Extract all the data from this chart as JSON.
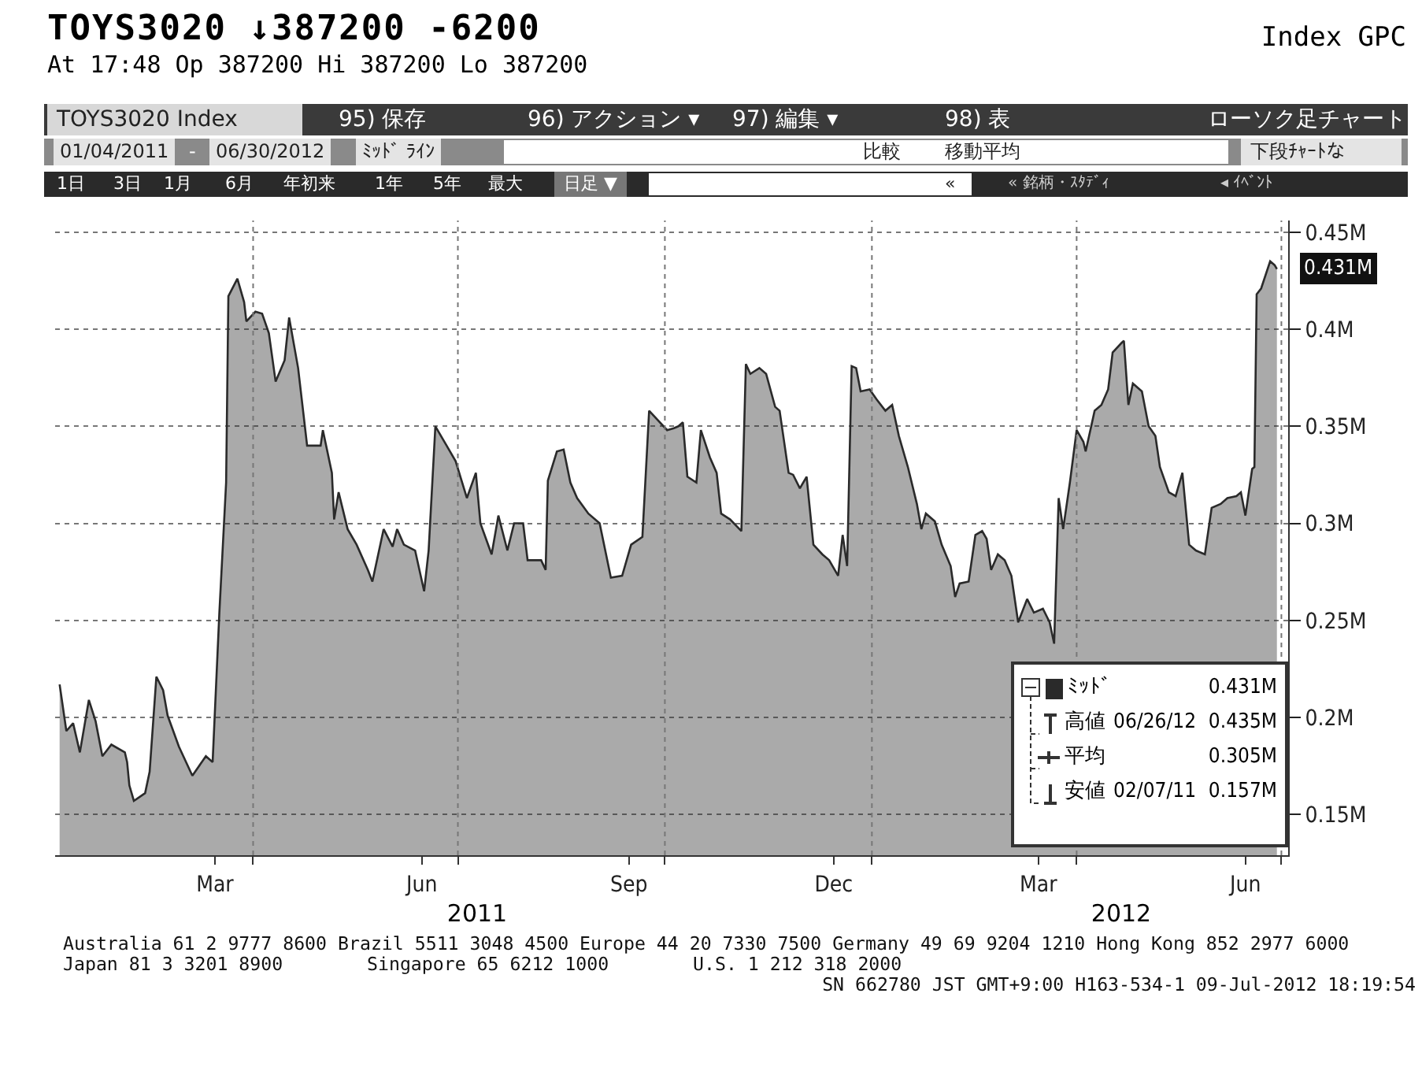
{
  "chart_data": {
    "type": "area",
    "title": "TOYS3020 ↓387200 -6200",
    "subtitle": "At 17:48 Op 387200 Hi 387200 Lo 387200",
    "x": [
      "2011-01-05",
      "2011-01-08",
      "2011-01-11",
      "2011-01-14",
      "2011-01-18",
      "2011-01-21",
      "2011-01-24",
      "2011-01-28",
      "2011-02-03",
      "2011-02-04",
      "2011-02-05",
      "2011-02-07",
      "2011-02-12",
      "2011-02-14",
      "2011-02-17",
      "2011-02-20",
      "2011-02-22",
      "2011-02-27",
      "2011-03-05",
      "2011-03-11",
      "2011-03-14",
      "2011-03-17",
      "2011-03-20",
      "2011-03-21",
      "2011-03-25",
      "2011-03-28",
      "2011-03-29",
      "2011-04-02",
      "2011-04-05",
      "2011-04-08",
      "2011-04-11",
      "2011-04-15",
      "2011-04-17",
      "2011-04-21",
      "2011-04-25",
      "2011-05-01",
      "2011-05-02",
      "2011-05-06",
      "2011-05-07",
      "2011-05-09",
      "2011-05-13",
      "2011-05-17",
      "2011-05-22",
      "2011-05-24",
      "2011-05-29",
      "2011-06-02",
      "2011-06-04",
      "2011-06-07",
      "2011-06-12",
      "2011-06-16",
      "2011-06-18",
      "2011-06-21",
      "2011-06-26",
      "2011-06-30",
      "2011-07-05",
      "2011-07-09",
      "2011-07-11",
      "2011-07-16",
      "2011-07-19",
      "2011-07-23",
      "2011-07-26",
      "2011-07-30",
      "2011-08-01",
      "2011-08-07",
      "2011-08-09",
      "2011-08-10",
      "2011-08-14",
      "2011-08-17",
      "2011-08-20",
      "2011-08-23",
      "2011-08-28",
      "2011-09-02",
      "2011-09-07",
      "2011-09-12",
      "2011-09-16",
      "2011-09-21",
      "2011-09-24",
      "2011-10-02",
      "2011-10-05",
      "2011-10-07",
      "2011-10-09",
      "2011-10-11",
      "2011-10-15",
      "2011-10-17",
      "2011-10-21",
      "2011-10-24",
      "2011-10-26",
      "2011-10-30",
      "2011-11-04",
      "2011-11-06",
      "2011-11-08",
      "2011-11-12",
      "2011-11-15",
      "2011-11-19",
      "2011-11-21",
      "2011-11-25",
      "2011-11-27",
      "2011-11-30",
      "2011-12-03",
      "2011-12-06",
      "2011-12-10",
      "2011-12-13",
      "2011-12-17",
      "2011-12-19",
      "2011-12-21",
      "2011-12-23",
      "2011-12-25",
      "2011-12-27",
      "2011-12-31",
      "2012-01-03",
      "2012-01-07",
      "2012-01-10",
      "2012-01-13",
      "2012-01-17",
      "2012-01-21",
      "2012-01-23",
      "2012-01-25",
      "2012-01-29",
      "2012-02-01",
      "2012-02-05",
      "2012-02-07",
      "2012-02-09",
      "2012-02-13",
      "2012-02-16",
      "2012-02-19",
      "2012-02-21",
      "2012-02-23",
      "2012-02-26",
      "2012-02-29",
      "2012-03-03",
      "2012-03-06",
      "2012-03-10",
      "2012-03-13",
      "2012-03-17",
      "2012-03-20",
      "2012-03-22",
      "2012-03-24",
      "2012-03-26",
      "2012-03-29",
      "2012-04-01",
      "2012-04-04",
      "2012-04-05",
      "2012-04-09",
      "2012-04-12",
      "2012-04-15",
      "2012-04-17",
      "2012-04-21",
      "2012-04-22",
      "2012-04-24",
      "2012-04-26",
      "2012-04-30",
      "2012-05-03",
      "2012-05-06",
      "2012-05-08",
      "2012-05-12",
      "2012-05-15",
      "2012-05-18",
      "2012-05-21",
      "2012-05-24",
      "2012-05-28",
      "2012-05-31",
      "2012-06-04",
      "2012-06-07",
      "2012-06-11",
      "2012-06-13",
      "2012-06-15",
      "2012-06-18",
      "2012-06-19",
      "2012-06-20",
      "2012-06-22",
      "2012-06-26",
      "2012-06-28",
      "2012-06-29"
    ],
    "series": [
      {
        "name": "ﾐｯﾄﾞ",
        "color": "#2a2a2a",
        "values": [
          0.217,
          0.193,
          0.197,
          0.182,
          0.209,
          0.198,
          0.18,
          0.186,
          0.182,
          0.177,
          0.165,
          0.157,
          0.161,
          0.172,
          0.221,
          0.214,
          0.201,
          0.185,
          0.17,
          0.18,
          0.177,
          0.254,
          0.321,
          0.417,
          0.426,
          0.414,
          0.404,
          0.409,
          0.408,
          0.398,
          0.373,
          0.384,
          0.406,
          0.38,
          0.34,
          0.34,
          0.348,
          0.326,
          0.302,
          0.316,
          0.297,
          0.289,
          0.276,
          0.27,
          0.297,
          0.288,
          0.297,
          0.289,
          0.286,
          0.265,
          0.286,
          0.35,
          0.34,
          0.332,
          0.313,
          0.326,
          0.3,
          0.284,
          0.304,
          0.286,
          0.3,
          0.3,
          0.281,
          0.281,
          0.276,
          0.322,
          0.337,
          0.338,
          0.321,
          0.313,
          0.305,
          0.3,
          0.272,
          0.273,
          0.289,
          0.293,
          0.358,
          0.348,
          0.349,
          0.35,
          0.352,
          0.324,
          0.321,
          0.348,
          0.334,
          0.326,
          0.305,
          0.302,
          0.296,
          0.382,
          0.377,
          0.38,
          0.377,
          0.36,
          0.358,
          0.326,
          0.325,
          0.318,
          0.324,
          0.289,
          0.284,
          0.281,
          0.273,
          0.294,
          0.278,
          0.381,
          0.38,
          0.368,
          0.369,
          0.364,
          0.358,
          0.361,
          0.345,
          0.329,
          0.31,
          0.297,
          0.305,
          0.301,
          0.289,
          0.278,
          0.262,
          0.269,
          0.27,
          0.294,
          0.296,
          0.292,
          0.276,
          0.284,
          0.281,
          0.273,
          0.249,
          0.261,
          0.254,
          0.256,
          0.249,
          0.238,
          0.313,
          0.297,
          0.321,
          0.348,
          0.342,
          0.337,
          0.358,
          0.361,
          0.369,
          0.388,
          0.393,
          0.394,
          0.361,
          0.372,
          0.368,
          0.35,
          0.345,
          0.329,
          0.316,
          0.314,
          0.326,
          0.289,
          0.286,
          0.284,
          0.308,
          0.31,
          0.313,
          0.314,
          0.316,
          0.304,
          0.328,
          0.329,
          0.418,
          0.421,
          0.435,
          0.433,
          0.431
        ]
      }
    ],
    "xlim": [
      "2011-01-03",
      "2012-07-04"
    ],
    "xticks": [
      {
        "value": "2011-03-15",
        "label": "Mar"
      },
      {
        "value": "2011-04-01",
        "label": null
      },
      {
        "value": "2011-06-15",
        "label": "Jun"
      },
      {
        "value": "2011-07-01",
        "label": null
      },
      {
        "value": "2011-09-15",
        "label": "Sep"
      },
      {
        "value": "2011-10-01",
        "label": null
      },
      {
        "value": "2011-12-15",
        "label": "Dec"
      },
      {
        "value": "2012-01-01",
        "label": null
      },
      {
        "value": "2012-03-15",
        "label": "Mar"
      },
      {
        "value": "2012-04-01",
        "label": null
      },
      {
        "value": "2012-06-15",
        "label": "Jun"
      },
      {
        "value": "2012-07-01",
        "label": null
      }
    ],
    "ylim": [
      0.129,
      0.456
    ],
    "yticks": [
      {
        "value": 0.15,
        "label": "0.15M"
      },
      {
        "value": 0.2,
        "label": "0.2M"
      },
      {
        "value": 0.25,
        "label": "0.25M"
      },
      {
        "value": 0.3,
        "label": "0.3M"
      },
      {
        "value": 0.35,
        "label": "0.35M"
      },
      {
        "value": 0.4,
        "label": "0.4M"
      },
      {
        "value": 0.45,
        "label": "0.45M"
      }
    ],
    "grid": true,
    "legend": "bottom right",
    "annotations": [
      "Index GPC",
      "TOYS3020 Index",
      "95) 保存",
      "96) アクション ▾",
      "97) 編集 ▾",
      "98) 表",
      "ローソク足チャート",
      "01/04/2011",
      "-",
      "06/30/2012",
      "ﾐｯﾄﾞ ﾗｲﾝ",
      "比較",
      "移動平均",
      "下段ﾁｬｰﾄな",
      "1日",
      "3日",
      "1月",
      "6月",
      "年初来",
      "1年",
      "5年",
      "最大",
      "日足 ▼",
      "«",
      "« 銘柄・ｽﾀﾃﾞｨ",
      "◂ ｲﾍﾞﾝﾄ",
      "0.431M",
      "高値",
      "06/26/12",
      "0.435M",
      "平均",
      "0.305M",
      "安値",
      "02/07/11",
      "0.157M",
      "2011",
      "2012",
      "Australia 61 2 9777 8600 Brazil 5511 3048 4500 Europe 44 20 7330 7500 Germany 49 69 9204 1210 Hong Kong 852 2977 6000",
      "Japan 81 3 3201 8900",
      "Singapore 65 6212 1000",
      "U.S. 1 212 318 2000",
      "SN 662780 JST GMT+9:00 H163-534-1 09-Jul-2012 18:19:54",
      {
        "text": "0.431M",
        "x": "2012-06-29",
        "y": 0.431
      }
    ]
  }
}
